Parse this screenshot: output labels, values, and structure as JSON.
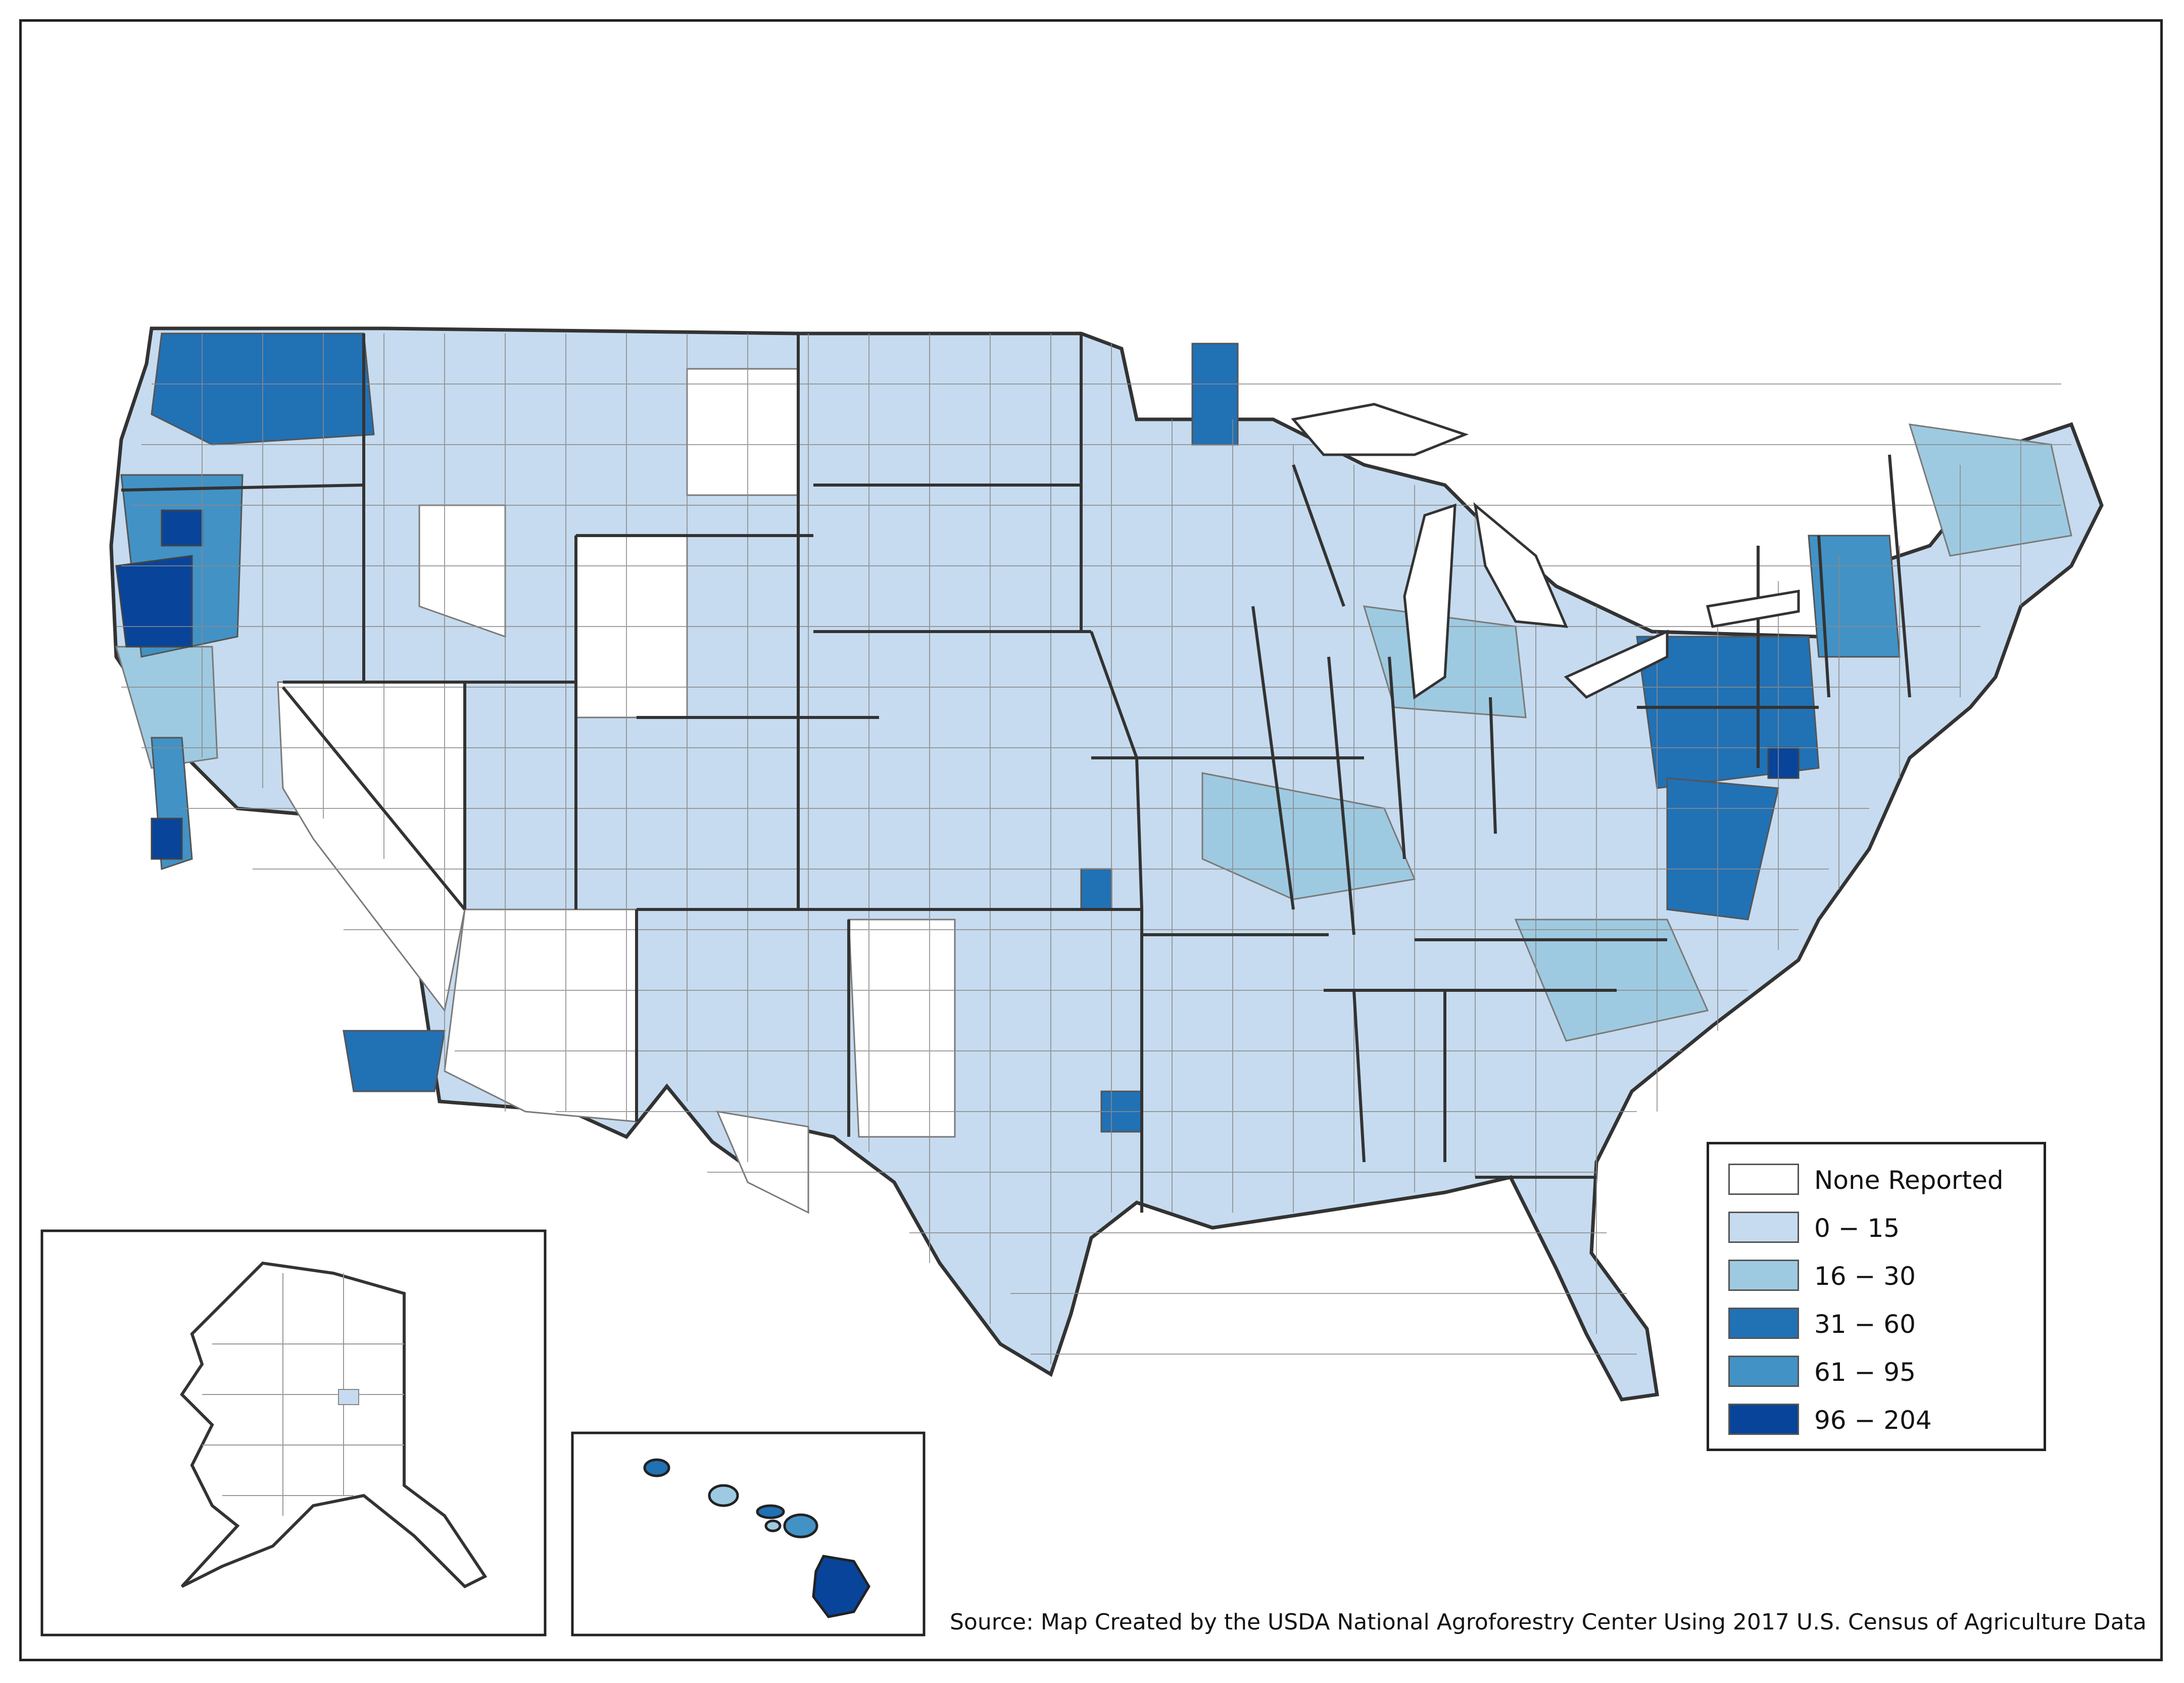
{
  "legend": {
    "items": [
      {
        "label": "None Reported",
        "color": "#ffffff"
      },
      {
        "label": "0 − 15",
        "color": "#c6dbef"
      },
      {
        "label": "16 − 30",
        "color": "#9ecae1"
      },
      {
        "label": "31 − 60",
        "color": "#2171b5"
      },
      {
        "label": "61 − 95",
        "color": "#4292c6"
      },
      {
        "label": "96 − 204",
        "color": "#08449a"
      }
    ]
  },
  "source": "Source: Map Created by the USDA National Agroforestry Center Using 2017 U.S. Census of Agriculture Data",
  "colors": {
    "border_state": "#333333",
    "border_county": "#7a7a7a",
    "none": "#ffffff",
    "low": "#c6dbef",
    "mid": "#9ecae1",
    "high": "#2171b5",
    "higher": "#4292c6",
    "highest": "#08449a"
  },
  "insets": [
    "alaska",
    "hawaii"
  ]
}
